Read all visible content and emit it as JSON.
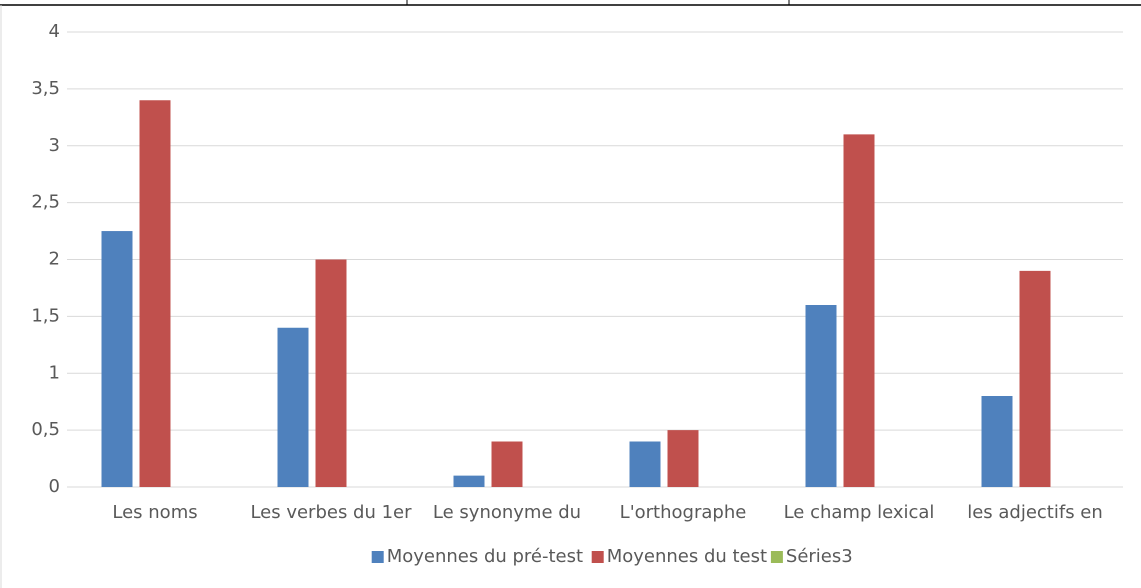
{
  "chart_data": {
    "type": "bar",
    "categories": [
      "Les noms",
      "Les verbes du 1er",
      "Le synonyme du",
      "L'orthographe",
      "Le champ lexical",
      "les adjectifs en"
    ],
    "series": [
      {
        "name": "Moyennes du pré-test",
        "color": "#4f81bd",
        "values": [
          2.25,
          1.4,
          0.1,
          0.4,
          1.6,
          0.8
        ]
      },
      {
        "name": "Moyennes du test",
        "color": "#c0504d",
        "values": [
          3.4,
          2.0,
          0.4,
          0.5,
          3.1,
          1.9
        ]
      },
      {
        "name": "Séries3",
        "color": "#9bbb59",
        "values": [
          null,
          null,
          null,
          null,
          null,
          null
        ]
      }
    ],
    "ylim": [
      0,
      4
    ],
    "yticks": [
      0,
      {
        "value": 0.5,
        "label": "0,5"
      },
      1,
      {
        "value": 1.5,
        "label": "1,5"
      },
      2,
      {
        "value": 2.5,
        "label": "2,5"
      },
      3,
      {
        "value": 3.5,
        "label": "3,5"
      },
      4
    ],
    "grid": true,
    "legend": "bottom"
  }
}
